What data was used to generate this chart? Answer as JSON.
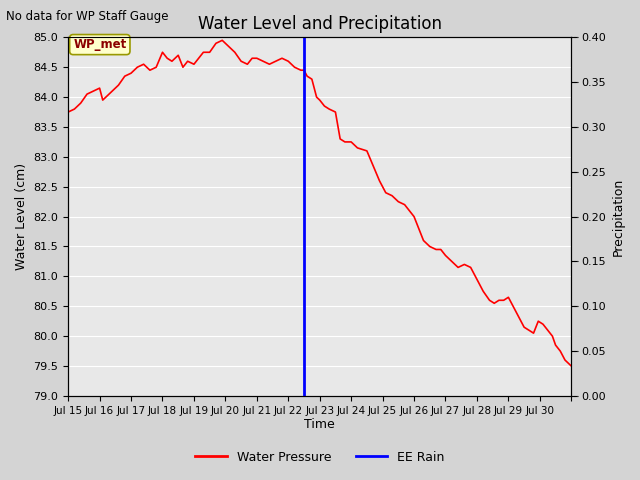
{
  "title": "Water Level and Precipitation",
  "top_left_text": "No data for WP Staff Gauge",
  "xlabel": "Time",
  "ylabel_left": "Water Level (cm)",
  "ylabel_right": "Precipitation",
  "ylim_left": [
    79.0,
    85.0
  ],
  "ylim_right": [
    0.0,
    0.4
  ],
  "yticks_left": [
    79.0,
    79.5,
    80.0,
    80.5,
    81.0,
    81.5,
    82.0,
    82.5,
    83.0,
    83.5,
    84.0,
    84.5,
    85.0
  ],
  "yticks_right": [
    0.0,
    0.05,
    0.1,
    0.15,
    0.2,
    0.25,
    0.3,
    0.35,
    0.4
  ],
  "fig_bg_color": "#d4d4d4",
  "plot_bg_color": "#e8e8e8",
  "grid_color": "#ffffff",
  "vline_x": 7.5,
  "vline_color": "blue",
  "water_pressure_color": "red",
  "legend_wp_label": "Water Pressure",
  "legend_rain_label": "EE Rain",
  "wp_met_label": "WP_met",
  "water_level_data": [
    [
      0.0,
      83.75
    ],
    [
      0.2,
      83.8
    ],
    [
      0.4,
      83.9
    ],
    [
      0.6,
      84.05
    ],
    [
      0.8,
      84.1
    ],
    [
      1.0,
      84.15
    ],
    [
      1.1,
      83.95
    ],
    [
      1.2,
      84.0
    ],
    [
      1.4,
      84.1
    ],
    [
      1.6,
      84.2
    ],
    [
      1.8,
      84.35
    ],
    [
      2.0,
      84.4
    ],
    [
      2.2,
      84.5
    ],
    [
      2.4,
      84.55
    ],
    [
      2.6,
      84.45
    ],
    [
      2.8,
      84.5
    ],
    [
      3.0,
      84.75
    ],
    [
      3.15,
      84.65
    ],
    [
      3.3,
      84.6
    ],
    [
      3.5,
      84.7
    ],
    [
      3.65,
      84.5
    ],
    [
      3.8,
      84.6
    ],
    [
      4.0,
      84.55
    ],
    [
      4.3,
      84.75
    ],
    [
      4.5,
      84.75
    ],
    [
      4.7,
      84.9
    ],
    [
      4.9,
      84.95
    ],
    [
      5.1,
      84.85
    ],
    [
      5.3,
      84.75
    ],
    [
      5.5,
      84.6
    ],
    [
      5.7,
      84.55
    ],
    [
      5.85,
      84.65
    ],
    [
      6.0,
      84.65
    ],
    [
      6.2,
      84.6
    ],
    [
      6.4,
      84.55
    ],
    [
      6.6,
      84.6
    ],
    [
      6.8,
      84.65
    ],
    [
      7.0,
      84.6
    ],
    [
      7.2,
      84.5
    ],
    [
      7.4,
      84.45
    ],
    [
      7.5,
      84.45
    ],
    [
      7.6,
      84.35
    ],
    [
      7.75,
      84.3
    ],
    [
      7.9,
      84.0
    ],
    [
      8.0,
      83.95
    ],
    [
      8.15,
      83.85
    ],
    [
      8.3,
      83.8
    ],
    [
      8.5,
      83.75
    ],
    [
      8.65,
      83.3
    ],
    [
      8.8,
      83.25
    ],
    [
      9.0,
      83.25
    ],
    [
      9.2,
      83.15
    ],
    [
      9.5,
      83.1
    ],
    [
      9.7,
      82.85
    ],
    [
      9.9,
      82.6
    ],
    [
      10.1,
      82.4
    ],
    [
      10.3,
      82.35
    ],
    [
      10.5,
      82.25
    ],
    [
      10.7,
      82.2
    ],
    [
      10.85,
      82.1
    ],
    [
      11.0,
      82.0
    ],
    [
      11.15,
      81.8
    ],
    [
      11.3,
      81.6
    ],
    [
      11.5,
      81.5
    ],
    [
      11.7,
      81.45
    ],
    [
      11.85,
      81.45
    ],
    [
      12.0,
      81.35
    ],
    [
      12.2,
      81.25
    ],
    [
      12.4,
      81.15
    ],
    [
      12.6,
      81.2
    ],
    [
      12.8,
      81.15
    ],
    [
      13.0,
      80.95
    ],
    [
      13.2,
      80.75
    ],
    [
      13.4,
      80.6
    ],
    [
      13.55,
      80.55
    ],
    [
      13.7,
      80.6
    ],
    [
      13.85,
      80.6
    ],
    [
      14.0,
      80.65
    ],
    [
      14.15,
      80.5
    ],
    [
      14.3,
      80.35
    ],
    [
      14.5,
      80.15
    ],
    [
      14.65,
      80.1
    ],
    [
      14.8,
      80.05
    ],
    [
      14.95,
      80.25
    ],
    [
      15.1,
      80.2
    ],
    [
      15.25,
      80.1
    ],
    [
      15.4,
      80.0
    ],
    [
      15.5,
      79.85
    ],
    [
      15.65,
      79.75
    ],
    [
      15.8,
      79.6
    ],
    [
      15.9,
      79.55
    ],
    [
      16.0,
      79.5
    ]
  ],
  "xtick_positions": [
    0,
    1,
    2,
    3,
    4,
    5,
    6,
    7,
    8,
    9,
    10,
    11,
    12,
    13,
    14,
    15,
    16
  ],
  "xtick_labels": [
    "Jul 15",
    "Jul 16",
    "Jul 17",
    "Jul 18",
    "Jul 19",
    "Jul 20",
    "Jul 21",
    "Jul 22",
    "Jul 23",
    "Jul 24",
    "Jul 25",
    "Jul 26",
    "Jul 27",
    "Jul 28",
    "Jul 29",
    "Jul 30",
    ""
  ]
}
